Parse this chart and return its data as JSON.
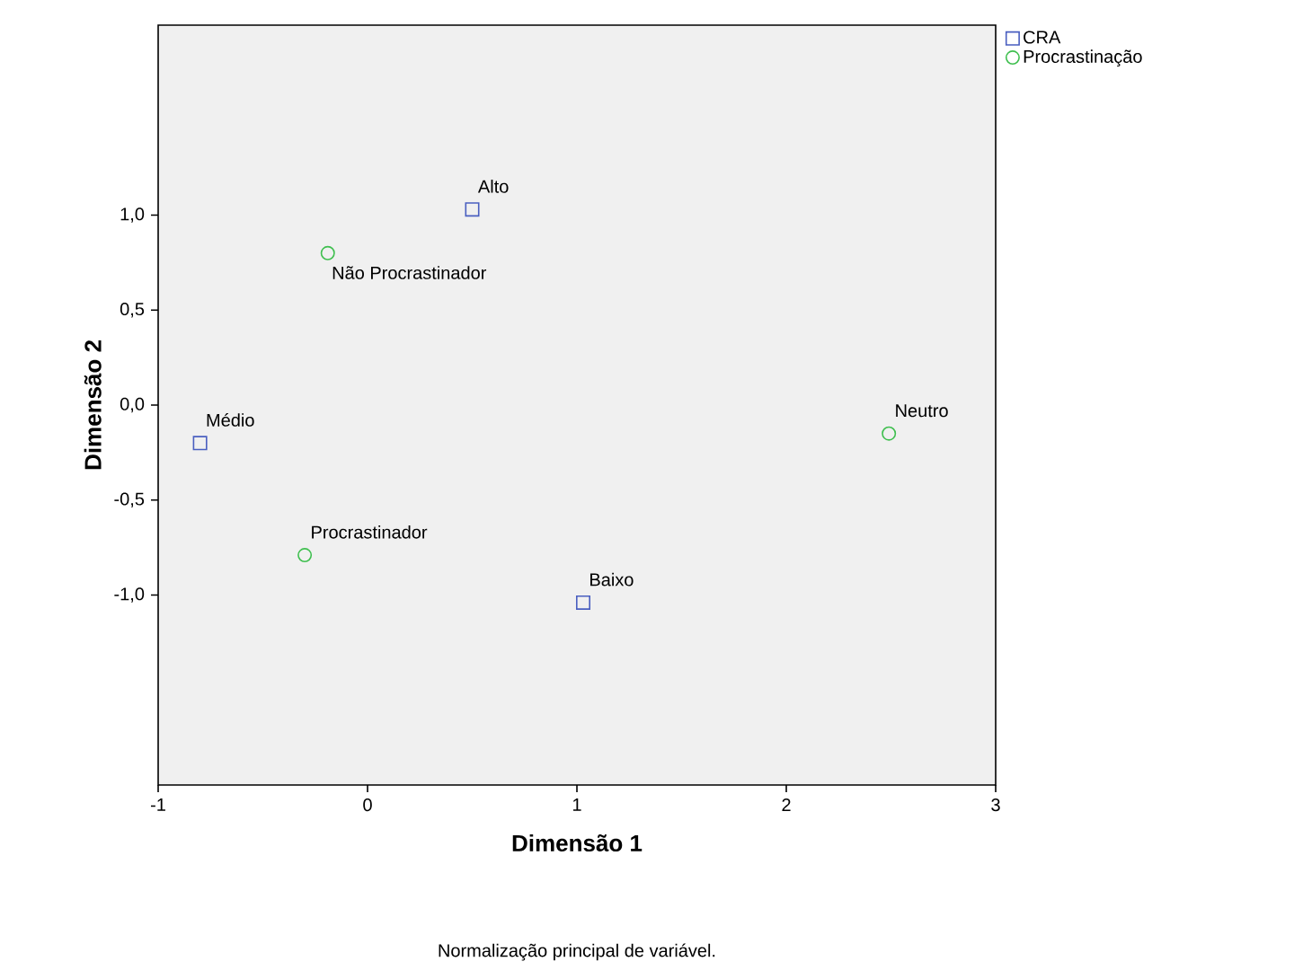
{
  "chart_data": {
    "type": "scatter",
    "xlabel": "Dimensão 1",
    "ylabel": "Dimensão 2",
    "series": [
      {
        "name": "CRA",
        "color": "#4a5fc0",
        "marker": "square",
        "x": [
          0.5,
          -0.8,
          1.03
        ],
        "values": [
          1.03,
          -0.2,
          -1.04
        ]
      },
      {
        "name": "Procrastinação",
        "color": "#3fbf4f",
        "marker": "circle",
        "x": [
          -0.19,
          2.49,
          -0.3
        ],
        "values": [
          0.8,
          -0.15,
          -0.79
        ]
      }
    ],
    "xlim": [
      -1,
      3
    ],
    "ylim": [
      -2,
      2
    ],
    "xticks": [
      -1,
      0,
      1,
      2,
      3
    ],
    "yticks": [
      {
        "value": -1,
        "label": "-1,0"
      },
      {
        "value": -0.5,
        "label": "-0,5"
      },
      {
        "value": 0,
        "label": "0,0"
      },
      {
        "value": 0.5,
        "label": "0,5"
      },
      {
        "value": 1,
        "label": "1,0"
      }
    ],
    "legend": "top right",
    "annotations": [
      {
        "text": "Alto",
        "x": 0.5,
        "y": 1.03
      },
      {
        "text": "Não Procrastinador",
        "x": -0.19,
        "y": 0.8
      },
      {
        "text": "Médio",
        "x": -0.8,
        "y": -0.2
      },
      {
        "text": "Neutro",
        "x": 2.49,
        "y": -0.15
      },
      {
        "text": "Procrastinador",
        "x": -0.3,
        "y": -0.79
      },
      {
        "text": "Baixo",
        "x": 1.03,
        "y": -1.04
      },
      "Normalização principal de variável."
    ]
  }
}
